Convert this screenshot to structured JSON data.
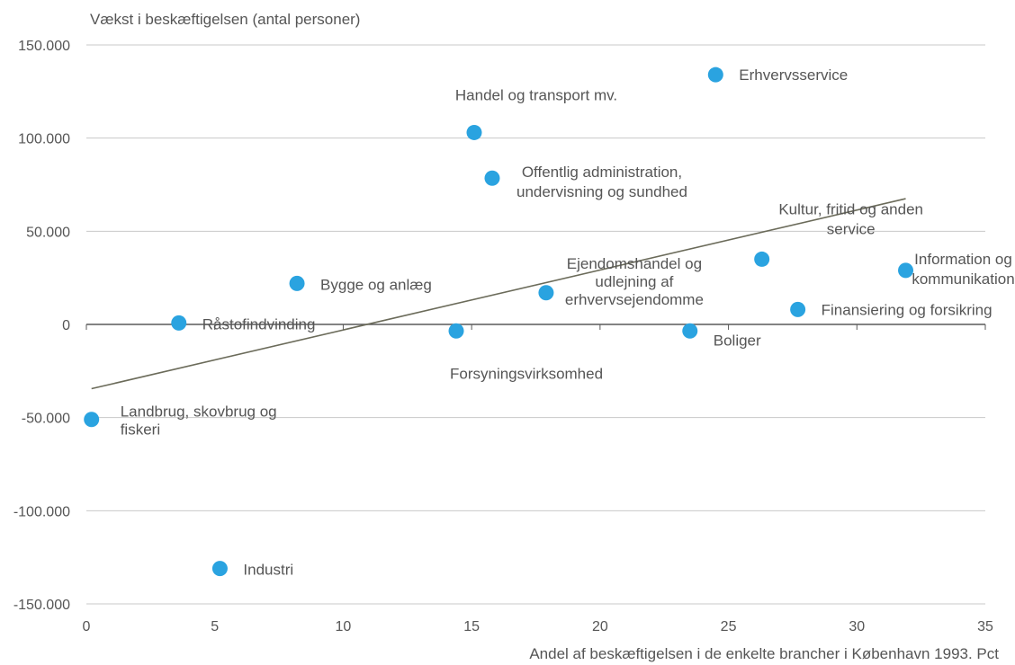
{
  "chart_data": {
    "type": "scatter",
    "ylabel": "Vækst i beskæftigelsen (antal personer)",
    "xlabel": "Andel af beskæftigelsen i de enkelte brancher  i København  1993. Pct",
    "xlim": [
      0,
      35
    ],
    "ylim": [
      -150000,
      150000
    ],
    "x_ticks": [
      0,
      5,
      10,
      15,
      20,
      25,
      30,
      35
    ],
    "x_tick_labels": [
      "0",
      "5",
      "10",
      "15",
      "20",
      "25",
      "30",
      "35"
    ],
    "y_ticks": [
      150000,
      100000,
      50000,
      0,
      -50000,
      -100000,
      -150000
    ],
    "y_tick_labels": [
      "150.000",
      "100.000",
      "50.000",
      "0",
      "-50.000",
      "-100.000",
      "-150.000"
    ],
    "grid": "horizontal",
    "point_color": "#2aa3e0",
    "trendline_color": "#6b6b5a",
    "trendline": {
      "x": [
        0.2,
        31.9
      ],
      "y": [
        -34500,
        67500
      ]
    },
    "points": [
      {
        "label": [
          "Landbrug, skovbrug og",
          "fiskeri"
        ],
        "x": 0.2,
        "y": -51000
      },
      {
        "label": [
          "Råstofindvinding"
        ],
        "x": 3.6,
        "y": 800
      },
      {
        "label": [
          "Industri"
        ],
        "x": 5.2,
        "y": -131000
      },
      {
        "label": [
          "Bygge og anlæg"
        ],
        "x": 8.2,
        "y": 22000
      },
      {
        "label": [
          "Forsyningsvirksomhed"
        ],
        "x": 14.4,
        "y": -3500
      },
      {
        "label": [
          "Handel og transport mv."
        ],
        "x": 15.1,
        "y": 103000
      },
      {
        "label": [
          "Offentlig administration,",
          "undervisning og sundhed"
        ],
        "x": 15.8,
        "y": 78500
      },
      {
        "label": [
          "Ejendomshandel og",
          "udlejning af",
          "erhvervsejendomme"
        ],
        "x": 17.9,
        "y": 17000
      },
      {
        "label": [
          "Boliger"
        ],
        "x": 23.5,
        "y": -3500
      },
      {
        "label": [
          "Erhvervsservice"
        ],
        "x": 24.5,
        "y": 134000
      },
      {
        "label": [
          "Kultur, fritid og anden",
          "service"
        ],
        "x": 26.3,
        "y": 35000
      },
      {
        "label": [
          "Finansiering og forsikring"
        ],
        "x": 27.7,
        "y": 8000
      },
      {
        "label": [
          "Information og",
          "kommunikation"
        ],
        "x": 31.9,
        "y": 29000
      }
    ]
  }
}
